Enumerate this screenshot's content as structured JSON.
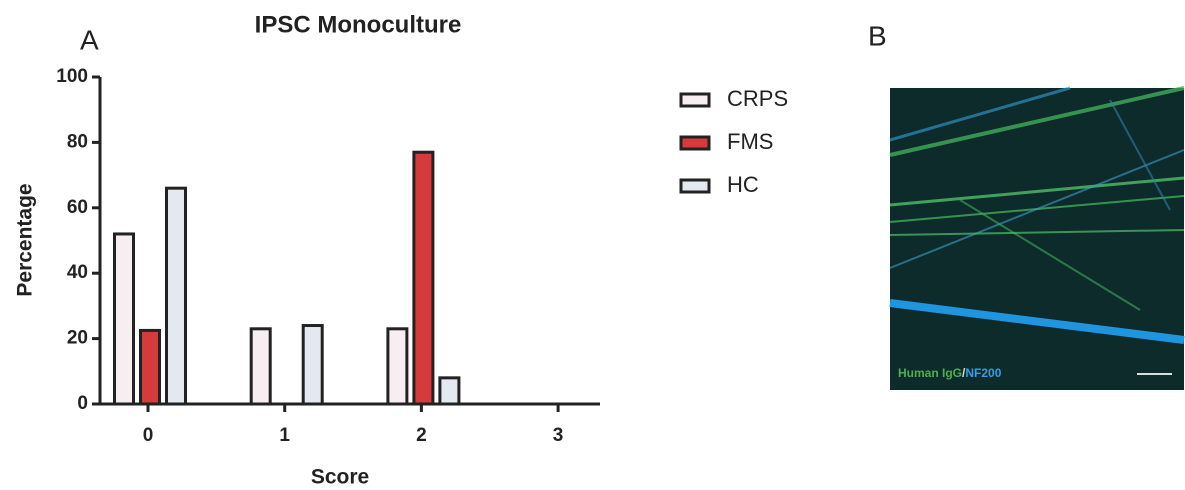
{
  "chart_data": {
    "type": "bar",
    "title": "IPSC Monoculture",
    "panel_label": "A",
    "x_label": "Score",
    "y_label": "Percentage",
    "categories": [
      "0",
      "1",
      "2",
      "3"
    ],
    "series": [
      {
        "name": "CRPS",
        "color": "#f6eef1",
        "values": [
          52,
          23,
          23,
          0
        ]
      },
      {
        "name": "FMS",
        "color": "#d63b3b",
        "values": [
          22.5,
          0,
          77,
          0
        ]
      },
      {
        "name": "HC",
        "color": "#e3e8f1",
        "values": [
          66,
          24,
          8,
          0
        ]
      }
    ],
    "ylim": [
      0,
      100
    ],
    "yticks": [
      0,
      20,
      40,
      60,
      80,
      100
    ],
    "grid": false,
    "legend": "right"
  },
  "image_panel": {
    "panel_label": "B",
    "stain_1": "Human IgG",
    "separator": "/",
    "stain_2": "NF200"
  }
}
